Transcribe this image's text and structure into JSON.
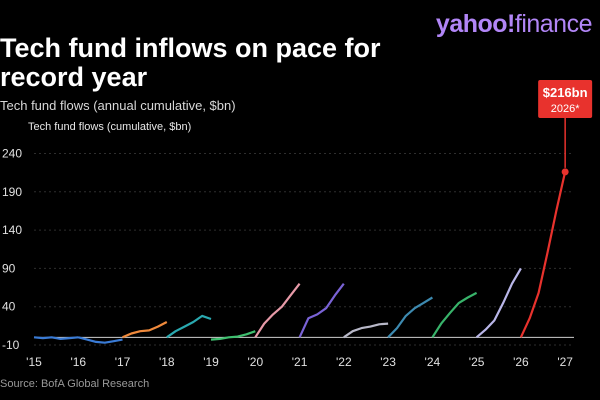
{
  "brand": {
    "left": "yahoo!",
    "right": "finance"
  },
  "title": "Tech fund inflows on pace for record year",
  "subtitle": "Tech fund flows (annual cumulative, $bn)",
  "source": "Source: BofA Global Research",
  "chart_data": {
    "type": "line",
    "ylabel": "Tech fund flows (cumulative, $bn)",
    "y_ticks": [
      -10,
      40,
      90,
      140,
      190,
      240
    ],
    "x_ticks": [
      "'15",
      "'16",
      "'17",
      "'18",
      "'19",
      "'20",
      "'21",
      "'22",
      "'23",
      "'24",
      "'25",
      "'26",
      "'27"
    ],
    "xlim": [
      2015.0,
      2027.2
    ],
    "ylim": [
      -10,
      255
    ],
    "annotation": {
      "value": "$216bn",
      "label": "2026*"
    },
    "series": [
      {
        "color": "#3a7bd5",
        "points": [
          [
            2015.0,
            0
          ],
          [
            2015.2,
            -1
          ],
          [
            2015.4,
            0
          ],
          [
            2015.6,
            -2
          ],
          [
            2015.8,
            -1
          ],
          [
            2016.0,
            0
          ]
        ]
      },
      {
        "color": "#3a7bd5",
        "points": [
          [
            2016.0,
            0
          ],
          [
            2016.2,
            -3
          ],
          [
            2016.4,
            -6
          ],
          [
            2016.6,
            -7
          ],
          [
            2016.8,
            -5
          ],
          [
            2017.0,
            -3
          ]
        ]
      },
      {
        "color": "#f08a3c",
        "points": [
          [
            2017.0,
            0
          ],
          [
            2017.2,
            5
          ],
          [
            2017.4,
            8
          ],
          [
            2017.6,
            9
          ],
          [
            2017.8,
            14
          ],
          [
            2018.0,
            20
          ]
        ]
      },
      {
        "color": "#2aa9b0",
        "points": [
          [
            2018.0,
            0
          ],
          [
            2018.2,
            8
          ],
          [
            2018.4,
            14
          ],
          [
            2018.6,
            20
          ],
          [
            2018.8,
            28
          ],
          [
            2019.0,
            24
          ]
        ]
      },
      {
        "color": "#3fbf6f",
        "points": [
          [
            2019.0,
            -3
          ],
          [
            2019.2,
            -2
          ],
          [
            2019.4,
            0
          ],
          [
            2019.6,
            1
          ],
          [
            2019.8,
            4
          ],
          [
            2020.0,
            8
          ]
        ]
      },
      {
        "color": "#e79aa8",
        "points": [
          [
            2020.0,
            0
          ],
          [
            2020.2,
            18
          ],
          [
            2020.4,
            30
          ],
          [
            2020.6,
            40
          ],
          [
            2020.8,
            55
          ],
          [
            2021.0,
            70
          ]
        ]
      },
      {
        "color": "#7a63d6",
        "points": [
          [
            2021.0,
            0
          ],
          [
            2021.2,
            25
          ],
          [
            2021.4,
            30
          ],
          [
            2021.6,
            38
          ],
          [
            2021.8,
            55
          ],
          [
            2022.0,
            70
          ]
        ]
      },
      {
        "color": "#b8b8c8",
        "points": [
          [
            2022.0,
            0
          ],
          [
            2022.2,
            8
          ],
          [
            2022.4,
            12
          ],
          [
            2022.6,
            14
          ],
          [
            2022.8,
            17
          ],
          [
            2023.0,
            18
          ]
        ]
      },
      {
        "color": "#3d8ab0",
        "points": [
          [
            2023.0,
            0
          ],
          [
            2023.2,
            12
          ],
          [
            2023.4,
            28
          ],
          [
            2023.6,
            38
          ],
          [
            2023.8,
            45
          ],
          [
            2024.0,
            52
          ]
        ]
      },
      {
        "color": "#38b36a",
        "points": [
          [
            2024.0,
            0
          ],
          [
            2024.2,
            18
          ],
          [
            2024.4,
            32
          ],
          [
            2024.6,
            45
          ],
          [
            2024.8,
            52
          ],
          [
            2025.0,
            58
          ]
        ]
      },
      {
        "color": "#b9b6e8",
        "points": [
          [
            2025.0,
            0
          ],
          [
            2025.2,
            10
          ],
          [
            2025.4,
            22
          ],
          [
            2025.6,
            45
          ],
          [
            2025.8,
            70
          ],
          [
            2026.0,
            90
          ]
        ]
      },
      {
        "color": "#e8322d",
        "points": [
          [
            2026.0,
            0
          ],
          [
            2026.2,
            25
          ],
          [
            2026.4,
            58
          ],
          [
            2026.6,
            110
          ],
          [
            2026.8,
            165
          ],
          [
            2027.0,
            216
          ]
        ]
      }
    ]
  }
}
